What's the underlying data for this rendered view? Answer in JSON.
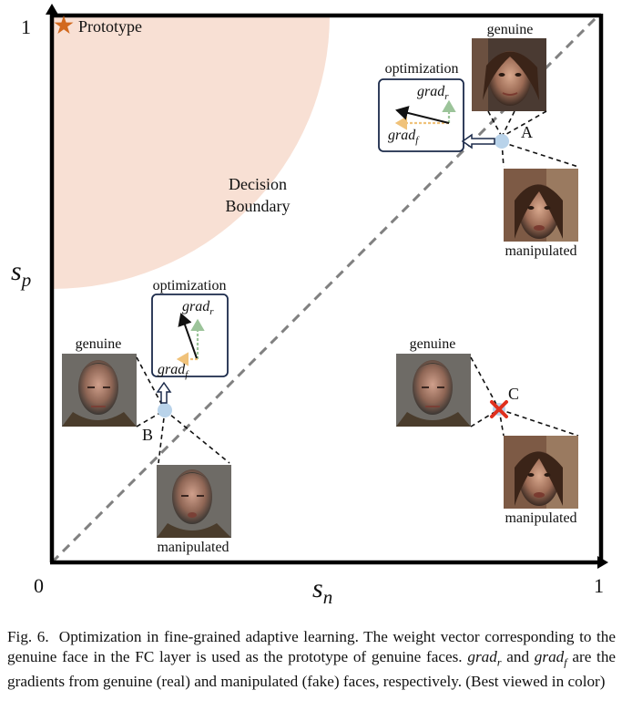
{
  "axes": {
    "y_max": "1",
    "x_max": "1",
    "origin": "0",
    "y_symbol": "s",
    "y_sub": "p",
    "x_symbol": "s",
    "x_sub": "n"
  },
  "prototype": {
    "label": "Prototype",
    "color": "#d2691e"
  },
  "region": {
    "line1": "Decision",
    "line2": "Boundary",
    "color": "#f8e0d4"
  },
  "points": {
    "a": {
      "letter": "A",
      "top_label": "genuine",
      "bottom_label": "manipulated"
    },
    "b": {
      "letter": "B",
      "top_label": "genuine",
      "bottom_label": "manipulated"
    },
    "c": {
      "letter": "C",
      "top_label": "genuine",
      "bottom_label": "manipulated"
    }
  },
  "optimization": {
    "title_a": "optimization",
    "title_b": "optimization",
    "grad_word": "grad",
    "real_sub": "r",
    "fake_sub": "f",
    "real_color": "#9cc49a",
    "fake_color": "#f0c27a"
  },
  "caption": {
    "prefix": "Fig. 6.",
    "part1": "Optimization in fine-grained adaptive learning. The weight vector corresponding to the genuine face in the FC layer is used as the prototype of genuine faces.",
    "grad_word": "grad",
    "real_sub": "r",
    "conj": "and",
    "fake_sub": "f",
    "part2": "are the gradients from genuine (real) and manipulated (fake) faces, respectively. (Best viewed in color)"
  }
}
